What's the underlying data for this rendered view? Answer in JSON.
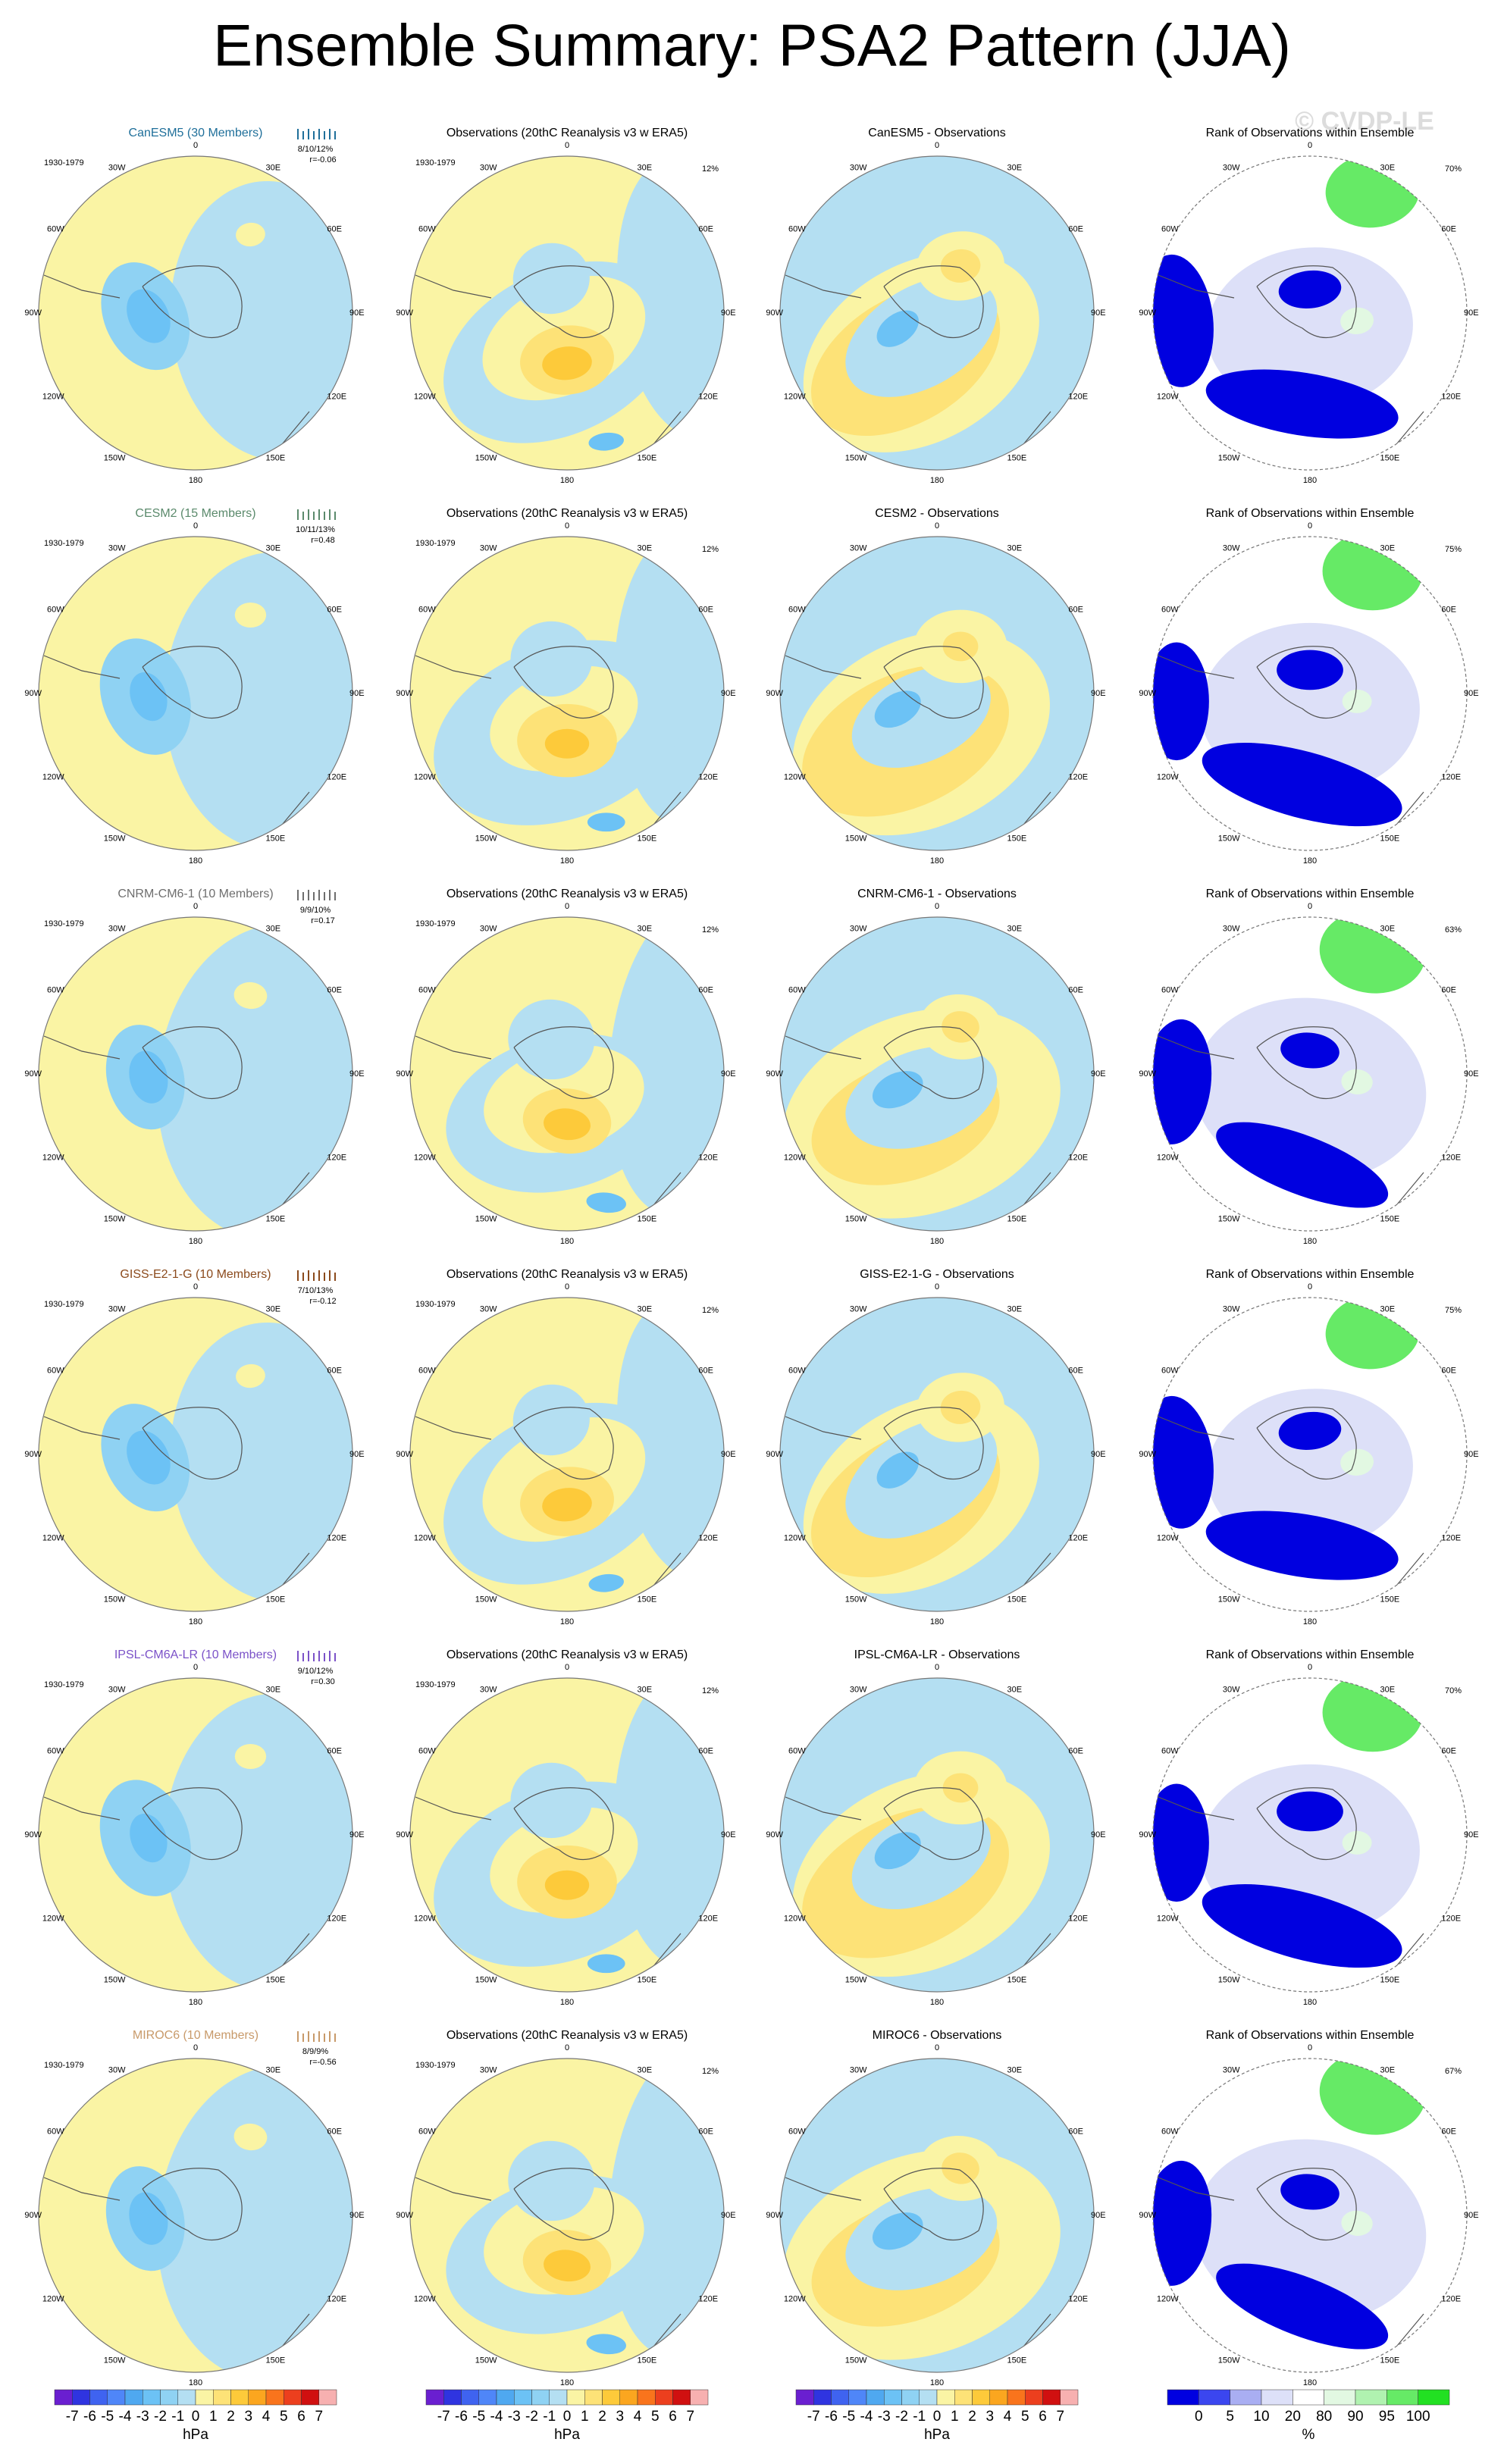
{
  "title": "Ensemble Summary: PSA2 Pattern (JJA)",
  "watermark": "© CVDP-LE",
  "period": "1930-1979",
  "obs_title": "Observations (20thC Reanalysis v3 w ERA5)",
  "rank_title": "Rank of Observations within Ensemble",
  "obs_pct": "12%",
  "lon_labels": [
    "0",
    "30E",
    "60E",
    "90E",
    "120E",
    "150E",
    "180",
    "150W",
    "120W",
    "90W",
    "60W",
    "30W"
  ],
  "rows": [
    {
      "model": "CanESM5 (30 Members)",
      "model_color": "#1f6f9a",
      "stats": "8/10/12%",
      "r": "r=-0.06",
      "diff_title": "CanESM5 - Observations",
      "rank_pct": "70%"
    },
    {
      "model": "CESM2 (15 Members)",
      "model_color": "#5b8a6c",
      "stats": "10/11/13%",
      "r": "r=0.48",
      "diff_title": "CESM2 - Observations",
      "rank_pct": "75%"
    },
    {
      "model": "CNRM-CM6-1 (10 Members)",
      "model_color": "#6e6e6e",
      "stats": "9/9/10%",
      "r": "r=0.17",
      "diff_title": "CNRM-CM6-1 - Observations",
      "rank_pct": "63%"
    },
    {
      "model": "GISS-E2-1-G (10 Members)",
      "model_color": "#8b4a1c",
      "stats": "7/10/13%",
      "r": "r=-0.12",
      "diff_title": "GISS-E2-1-G - Observations",
      "rank_pct": "75%"
    },
    {
      "model": "IPSL-CM6A-LR (10 Members)",
      "model_color": "#7b52c8",
      "stats": "9/10/12%",
      "r": "r=0.30",
      "diff_title": "IPSL-CM6A-LR - Observations",
      "rank_pct": "70%"
    },
    {
      "model": "MIROC6 (10 Members)",
      "model_color": "#c89a6a",
      "stats": "8/9/9%",
      "r": "r=-0.56",
      "diff_title": "MIROC6 - Observations",
      "rank_pct": "67%"
    }
  ],
  "colorbar": {
    "labels": [
      "-7",
      "-6",
      "-5",
      "-4",
      "-3",
      "-2",
      "-1",
      "0",
      "1",
      "2",
      "3",
      "4",
      "5",
      "6",
      "7"
    ],
    "unit": "hPa",
    "colors": [
      "#6a1fd0",
      "#2f34e0",
      "#3f63f0",
      "#4f86f8",
      "#4fa8f0",
      "#6cc2f5",
      "#8fd2f3",
      "#b4dff2",
      "#faf4a4",
      "#fde277",
      "#fdca3a",
      "#fba61f",
      "#f9741c",
      "#ec3f1e",
      "#d01010",
      "#f7b0b0"
    ]
  },
  "rank_colorbar": {
    "labels": [
      "0",
      "5",
      "10",
      "20",
      "80",
      "90",
      "95",
      "100"
    ],
    "unit": "%",
    "colors": [
      "#0000e0",
      "#3b46ef",
      "#a9aef2",
      "#dde0f8",
      "#ffffff",
      "#e2f8e2",
      "#b0f2b0",
      "#66ea66",
      "#22e022"
    ]
  }
}
